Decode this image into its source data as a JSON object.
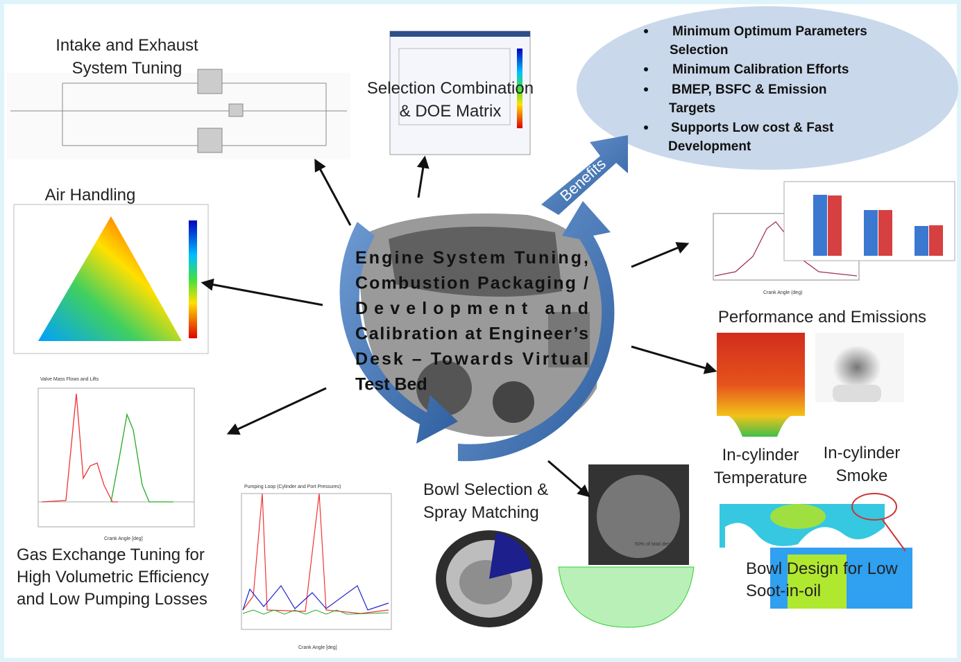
{
  "center_text": [
    "Engine System Tuning,",
    "Combustion Packaging /",
    "Development and",
    "Calibration at Engineer’s",
    "Desk – Towards Virtual",
    "Test Bed"
  ],
  "benefits": {
    "label": "Benefits",
    "items": [
      [
        "Minimum Optimum  Parameters",
        "Selection"
      ],
      [
        "Minimum Calibration Efforts"
      ],
      [
        "BMEP, BSFC & Emission",
        "Targets"
      ],
      [
        "Supports Low cost & Fast",
        "Development"
      ]
    ]
  },
  "sections": {
    "intake": [
      "Intake and Exhaust",
      "System Tuning"
    ],
    "selection": [
      "Selection Combination",
      "& DOE Matrix"
    ],
    "air_handling": [
      "Air Handling"
    ],
    "gas_exchange": [
      "Gas Exchange Tuning for",
      "High Volumetric Efficiency",
      "and Low Pumping Losses"
    ],
    "bowl_selection": [
      "Bowl Selection &",
      "Spray Matching"
    ],
    "performance": [
      "Performance and Emissions"
    ],
    "temperature": [
      "In-cylinder",
      "Temperature"
    ],
    "smoke": [
      "In-cylinder",
      "Smoke"
    ],
    "bowl_design": [
      "Bowl Design for Low",
      "Soot-in-oil"
    ]
  },
  "mini_charts": {
    "valve_title": "Valve Mass Flows and Lifts",
    "valve_x": "Crank Angle [deg]",
    "pumping_title": "Pumping Loop (Cylinder and Port Pressures)",
    "pumping_x": "Crank Angle [deg]",
    "performance_x": "Crank Angle (deg)",
    "photo_note": "50% of total depth"
  }
}
